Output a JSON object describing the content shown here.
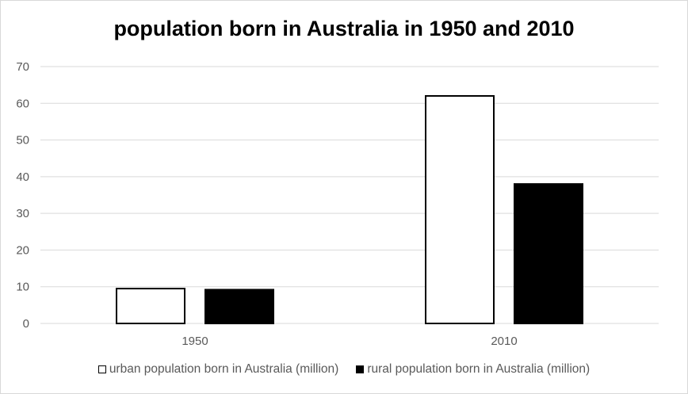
{
  "chart_data": {
    "type": "bar",
    "title": "population born in Australia in 1950 and 2010",
    "categories": [
      "1950",
      "2010"
    ],
    "series": [
      {
        "name": "urban population born in Australia (million)",
        "values": [
          9.5,
          62
        ],
        "color": "#ffffff",
        "border": "#000000"
      },
      {
        "name": "rural population born in Australia (million)",
        "values": [
          9.2,
          38
        ],
        "color": "#000000",
        "border": "#000000"
      }
    ],
    "ylim": [
      0,
      70
    ],
    "yticks": [
      "0",
      "10",
      "20",
      "30",
      "40",
      "50",
      "60",
      "70"
    ],
    "grid": true,
    "legend_position": "bottom",
    "xlabel": "",
    "ylabel": ""
  }
}
